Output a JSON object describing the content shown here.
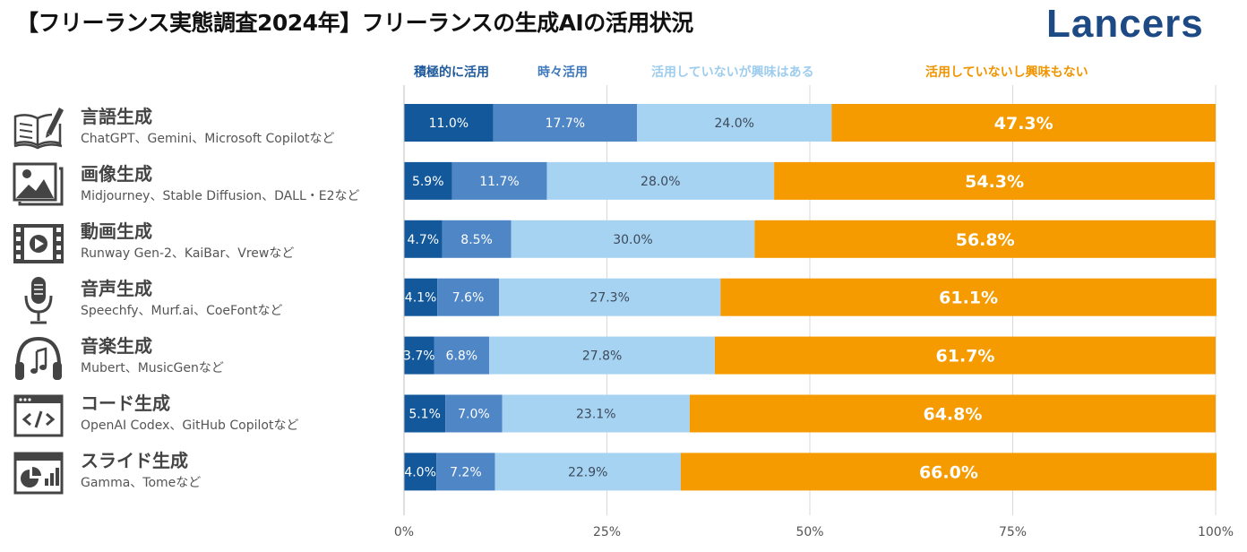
{
  "header": {
    "title": "【フリーランス実態調査2024年】フリーランスの生成AIの活用状況",
    "brand": "Lancers"
  },
  "colors": {
    "active": "#12589b",
    "sometimes": "#4f86c6",
    "interested": "#a7d3f2",
    "not_interested": "#f59b00",
    "legend_active": "#1e5a9c",
    "legend_sometimes": "#3f79bd",
    "legend_interested": "#9ecdee",
    "legend_not_interested": "#f09400"
  },
  "categories": [
    {
      "name": "言語生成",
      "examples": "ChatGPT、Gemini、Microsoft Copilotなど",
      "icon": "book-pen-icon"
    },
    {
      "name": "画像生成",
      "examples": "Midjourney、Stable Diffusion、DALL・E2など",
      "icon": "image-icon"
    },
    {
      "name": "動画生成",
      "examples": "Runway Gen-2、KaiBar、Vrewなど",
      "icon": "film-icon"
    },
    {
      "name": "音声生成",
      "examples": "Speechfy、Murf.ai、CoeFontなど",
      "icon": "microphone-icon"
    },
    {
      "name": "音楽生成",
      "examples": "Mubert、MusicGenなど",
      "icon": "headphones-icon"
    },
    {
      "name": "コード生成",
      "examples": "OpenAI Codex、GitHub Copilotなど",
      "icon": "code-icon"
    },
    {
      "name": "スライド生成",
      "examples": "Gamma、Tomeなど",
      "icon": "slide-icon"
    }
  ],
  "chart_data": {
    "type": "bar",
    "orientation": "horizontal",
    "stacked": true,
    "title": "【フリーランス実態調査2024年】フリーランスの生成AIの活用状況",
    "categories": [
      "言語生成",
      "画像生成",
      "動画生成",
      "音声生成",
      "音楽生成",
      "コード生成",
      "スライド生成"
    ],
    "series": [
      {
        "name": "積極的に活用",
        "values": [
          11.0,
          5.9,
          4.7,
          4.1,
          3.7,
          5.1,
          4.0
        ]
      },
      {
        "name": "時々活用",
        "values": [
          17.7,
          11.7,
          8.5,
          7.6,
          6.8,
          7.0,
          7.2
        ]
      },
      {
        "name": "活用していないが興味はある",
        "values": [
          24.0,
          28.0,
          30.0,
          27.3,
          27.8,
          23.1,
          22.9
        ]
      },
      {
        "name": "活用していないし興味もない",
        "values": [
          47.3,
          54.3,
          56.8,
          61.1,
          61.7,
          64.8,
          66.0
        ]
      }
    ],
    "value_suffix": "%",
    "xlim": [
      0,
      100
    ],
    "xticks": [
      "0%",
      "25%",
      "50%",
      "75%",
      "100%"
    ],
    "grid": true,
    "legend_position": "top"
  }
}
